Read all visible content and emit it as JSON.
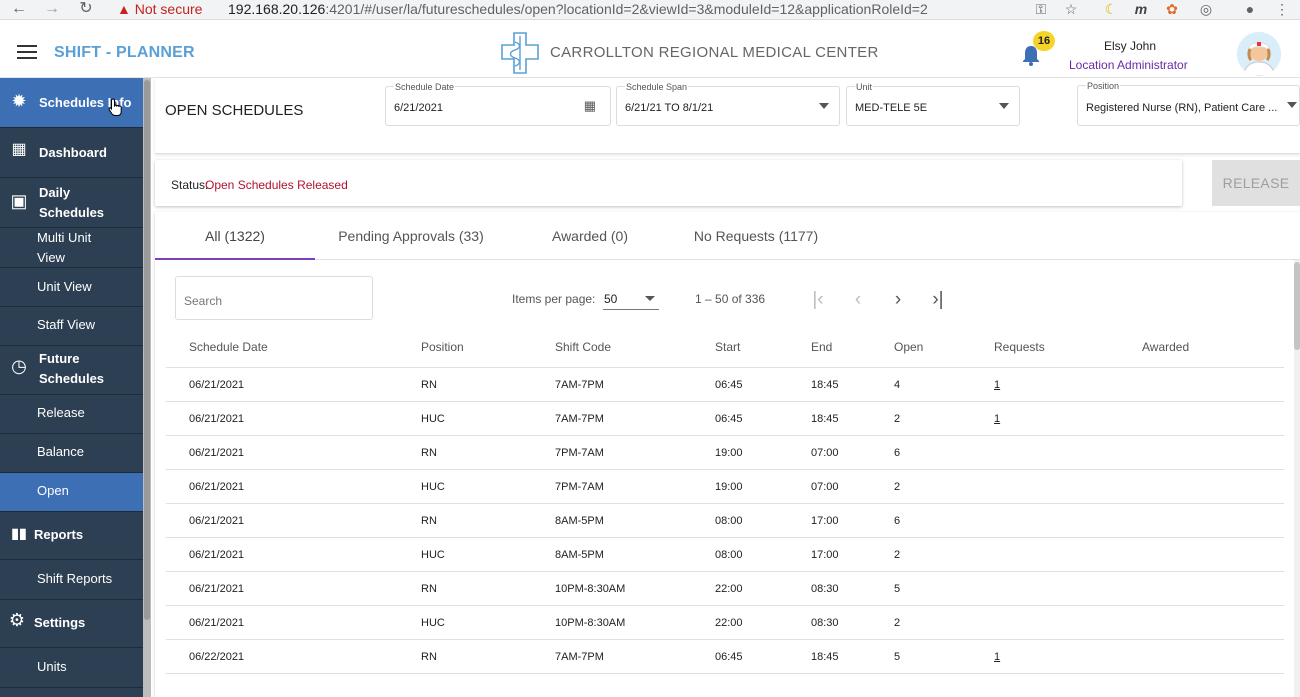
{
  "browser": {
    "security": "Not secure",
    "url_host": "192.168.20.126",
    "url_rest": ":4201/#/user/la/futureschedules/open?locationId=2&viewId=3&moduleId=12&applicationRoleId=2"
  },
  "header": {
    "brand": "SHIFT - PLANNER",
    "hospital": "CARROLLTON REGIONAL MEDICAL CENTER",
    "notification_count": "16",
    "user_name": "Elsy John",
    "user_role": "Location Administrator"
  },
  "sidebar": {
    "items": [
      {
        "label": "Schedules Info",
        "icon": "gear-badge-icon"
      },
      {
        "label": "Dashboard",
        "icon": "dashboard-icon"
      },
      {
        "label": "Daily Schedules",
        "icon": "calendar-icon"
      },
      {
        "label": "Multi Unit View"
      },
      {
        "label": "Unit View"
      },
      {
        "label": "Staff View"
      },
      {
        "label": "Future Schedules",
        "icon": "clock-icon"
      },
      {
        "label": "Release"
      },
      {
        "label": "Balance"
      },
      {
        "label": "Open"
      },
      {
        "label": "Reports",
        "icon": "bar-chart-icon"
      },
      {
        "label": "Shift Reports"
      },
      {
        "label": "Settings",
        "icon": "gear-icon"
      },
      {
        "label": "Units"
      }
    ]
  },
  "filters": {
    "title": "OPEN SCHEDULES",
    "schedule_date": {
      "caption": "Schedule Date",
      "value": "6/21/2021"
    },
    "schedule_span": {
      "caption": "Schedule Span",
      "value": "6/21/21 TO 8/1/21"
    },
    "unit": {
      "caption": "Unit",
      "value": "MED-TELE 5E"
    },
    "position": {
      "caption": "Position",
      "value": "Registered Nurse (RN), Patient Care ..."
    }
  },
  "status": {
    "label": "Status:",
    "value": "Open Schedules Released",
    "release_button": "RELEASE"
  },
  "tabs": [
    {
      "label": "All (1322)"
    },
    {
      "label": "Pending Approvals (33)"
    },
    {
      "label": "Awarded (0)"
    },
    {
      "label": "No Requests (1177)"
    }
  ],
  "toolbar": {
    "search_placeholder": "Search",
    "items_per_page_label": "Items per page:",
    "items_per_page": "50",
    "range": "1 – 50 of 336"
  },
  "table": {
    "columns": [
      "Schedule Date",
      "Position",
      "Shift Code",
      "Start",
      "End",
      "Open",
      "Requests",
      "Awarded"
    ],
    "rows": [
      [
        "06/21/2021",
        "RN",
        "7AM-7PM",
        "06:45",
        "18:45",
        "4",
        "1",
        ""
      ],
      [
        "06/21/2021",
        "HUC",
        "7AM-7PM",
        "06:45",
        "18:45",
        "2",
        "1",
        ""
      ],
      [
        "06/21/2021",
        "RN",
        "7PM-7AM",
        "19:00",
        "07:00",
        "6",
        "",
        ""
      ],
      [
        "06/21/2021",
        "HUC",
        "7PM-7AM",
        "19:00",
        "07:00",
        "2",
        "",
        ""
      ],
      [
        "06/21/2021",
        "RN",
        "8AM-5PM",
        "08:00",
        "17:00",
        "6",
        "",
        ""
      ],
      [
        "06/21/2021",
        "HUC",
        "8AM-5PM",
        "08:00",
        "17:00",
        "2",
        "",
        ""
      ],
      [
        "06/21/2021",
        "RN",
        "10PM-8:30AM",
        "22:00",
        "08:30",
        "5",
        "",
        ""
      ],
      [
        "06/21/2021",
        "HUC",
        "10PM-8:30AM",
        "22:00",
        "08:30",
        "2",
        "",
        ""
      ],
      [
        "06/22/2021",
        "RN",
        "7AM-7PM",
        "06:45",
        "18:45",
        "5",
        "1",
        ""
      ]
    ]
  }
}
